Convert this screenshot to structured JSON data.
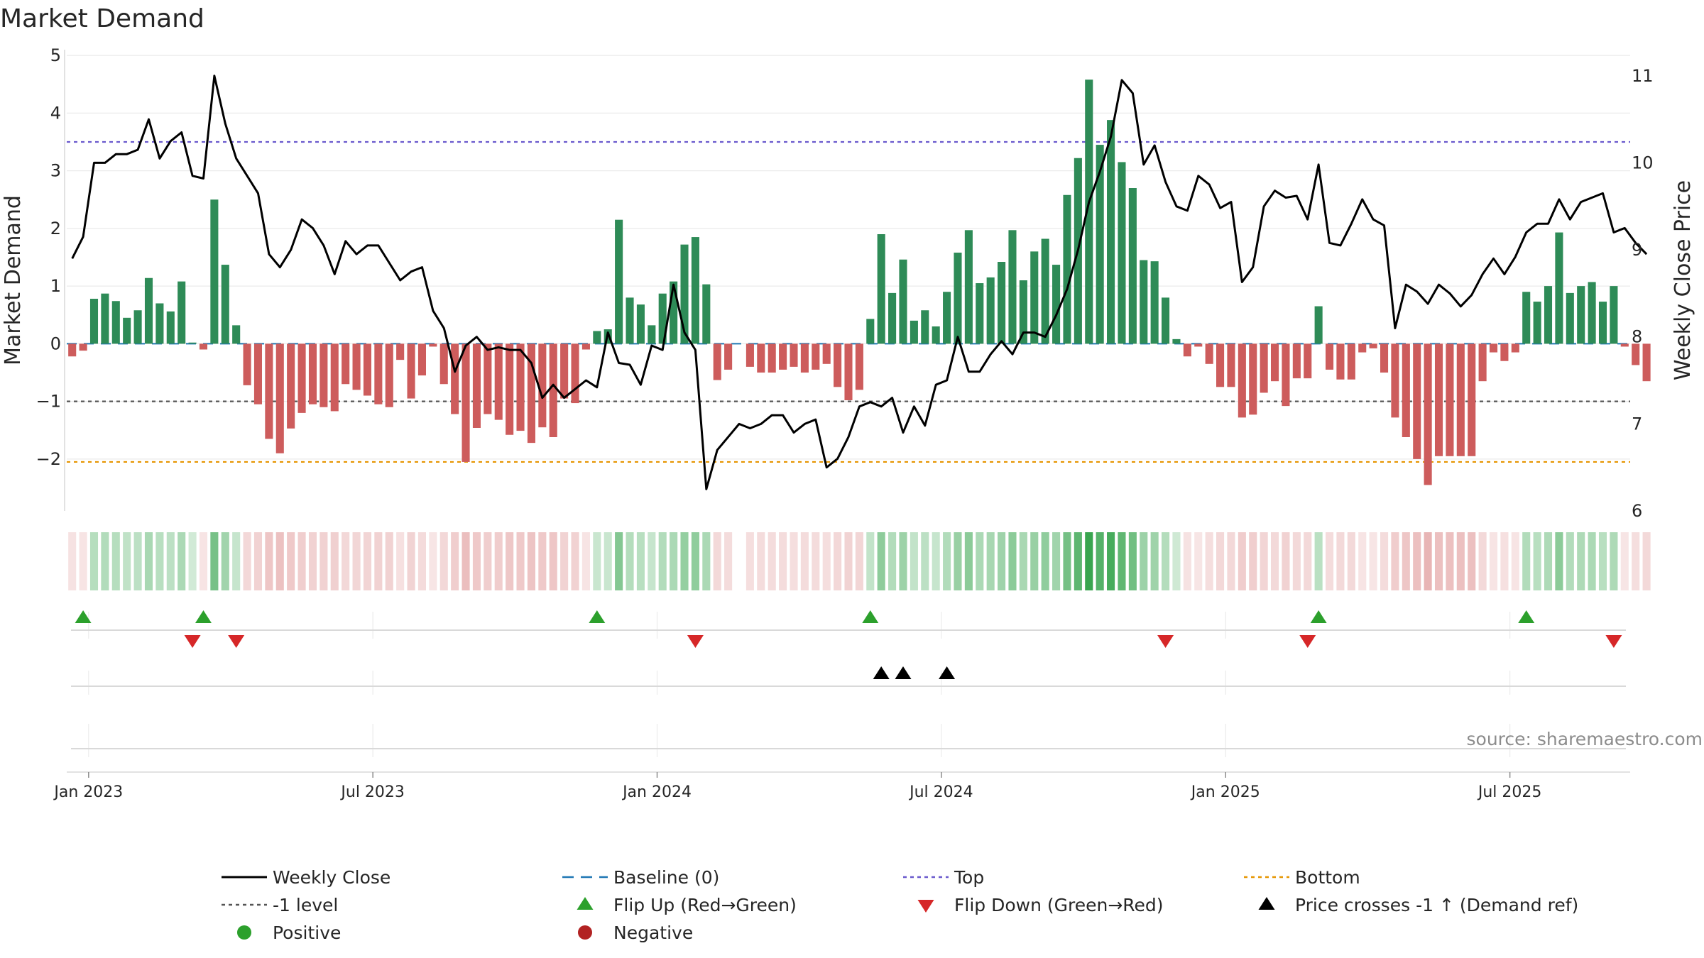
{
  "chart_data": {
    "type": "bar",
    "title": "Market Demand",
    "ylabel": "Market Demand",
    "y2label": "Weekly Close Price",
    "ylim": [
      -2.9,
      5.1
    ],
    "y2lim": [
      6.0,
      11.3
    ],
    "yticks": [
      5,
      4,
      3,
      2,
      1,
      0,
      -1,
      -2
    ],
    "yticklabels": [
      "5",
      "4",
      "3",
      "2",
      "1",
      "0",
      "−1",
      "−2"
    ],
    "y2ticks": [
      11,
      10,
      9,
      8,
      7,
      6
    ],
    "y2ticklabels": [
      "11",
      "10",
      "9",
      "8",
      "7",
      "6"
    ],
    "xticks": [
      1.5,
      27.5,
      53.5,
      79.5,
      105.5,
      131.5
    ],
    "xticklabels": [
      "Jan 2023",
      "Jul 2023",
      "Jan 2024",
      "Jul 2024",
      "Jan 2025",
      "Jul 2025"
    ],
    "week_index_range": [
      -0.5,
      142.5
    ],
    "reference_lines": {
      "baseline": 0,
      "top": 3.5,
      "minus_one": -1,
      "bottom": -2.05
    },
    "demand": [
      -0.22,
      -0.12,
      0.78,
      0.87,
      0.74,
      0.45,
      0.58,
      1.14,
      0.7,
      0.56,
      1.08,
      0.02,
      -0.1,
      2.5,
      1.37,
      0.32,
      -0.72,
      -1.05,
      -1.65,
      -1.9,
      -1.47,
      -1.2,
      -1.05,
      -1.1,
      -1.17,
      -0.7,
      -0.8,
      -0.9,
      -1.05,
      -1.1,
      -0.28,
      -0.95,
      -0.55,
      -0.05,
      -0.7,
      -1.22,
      -2.05,
      -1.46,
      -1.22,
      -1.32,
      -1.58,
      -1.51,
      -1.72,
      -1.45,
      -1.62,
      -0.95,
      -1.03,
      -0.1,
      0.22,
      0.25,
      2.15,
      0.8,
      0.68,
      0.32,
      0.87,
      1.08,
      1.72,
      1.85,
      1.03,
      -0.63,
      -0.45,
      0.0,
      -0.4,
      -0.5,
      -0.5,
      -0.45,
      -0.4,
      -0.5,
      -0.45,
      -0.35,
      -0.75,
      -0.98,
      -0.8,
      0.43,
      1.9,
      0.88,
      1.46,
      0.4,
      0.58,
      0.3,
      0.9,
      1.58,
      1.97,
      1.05,
      1.15,
      1.42,
      1.97,
      1.1,
      1.6,
      1.82,
      1.37,
      2.58,
      3.22,
      4.58,
      3.45,
      3.88,
      3.15,
      2.7,
      1.45,
      1.43,
      0.8,
      0.08,
      -0.22,
      -0.05,
      -0.35,
      -0.75,
      -0.75,
      -1.28,
      -1.23,
      -0.85,
      -0.65,
      -1.08,
      -0.6,
      -0.6,
      0.65,
      -0.45,
      -0.62,
      -0.62,
      -0.15,
      -0.08,
      -0.5,
      -1.28,
      -1.62,
      -2.0,
      -2.45,
      -1.95,
      -1.95,
      -1.95,
      -1.95,
      -0.65,
      -0.15,
      -0.3,
      -0.15,
      0.9,
      0.73,
      1.0,
      1.93,
      0.88,
      1.0,
      1.07,
      0.73,
      1.0,
      -0.05,
      -0.37,
      -0.65
    ],
    "close": [
      8.9,
      9.15,
      10.0,
      10.0,
      10.1,
      10.1,
      10.15,
      10.5,
      10.05,
      10.25,
      10.35,
      9.85,
      9.82,
      11.0,
      10.45,
      10.05,
      9.85,
      9.65,
      8.95,
      8.8,
      9.0,
      9.35,
      9.25,
      9.05,
      8.72,
      9.1,
      8.95,
      9.05,
      9.05,
      8.85,
      8.65,
      8.75,
      8.8,
      8.3,
      8.1,
      7.6,
      7.9,
      8.0,
      7.85,
      7.88,
      7.85,
      7.85,
      7.7,
      7.3,
      7.45,
      7.3,
      7.4,
      7.5,
      7.42,
      8.05,
      7.7,
      7.68,
      7.45,
      7.9,
      7.85,
      8.6,
      8.05,
      7.85,
      6.25,
      6.7,
      6.85,
      7.0,
      6.95,
      7.0,
      7.1,
      7.1,
      6.9,
      7.0,
      7.05,
      6.5,
      6.6,
      6.85,
      7.2,
      7.25,
      7.2,
      7.3,
      6.9,
      7.2,
      6.98,
      7.45,
      7.5,
      8.0,
      7.6,
      7.6,
      7.8,
      7.95,
      7.8,
      8.05,
      8.05,
      8.0,
      8.25,
      8.55,
      9.0,
      9.55,
      9.9,
      10.3,
      10.95,
      10.8,
      9.98,
      10.2,
      9.78,
      9.5,
      9.45,
      9.85,
      9.75,
      9.48,
      9.55,
      8.63,
      8.8,
      9.5,
      9.68,
      9.6,
      9.62,
      9.35,
      9.98,
      9.08,
      9.05,
      9.3,
      9.58,
      9.35,
      9.28,
      8.1,
      8.6,
      8.52,
      8.38,
      8.6,
      8.5,
      8.35,
      8.48,
      8.72,
      8.9,
      8.72,
      8.92,
      9.2,
      9.3,
      9.3,
      9.58,
      9.35,
      9.55,
      9.6,
      9.65,
      9.2,
      9.25,
      9.08,
      8.95
    ],
    "flip_up_weeks": [
      1,
      12,
      48,
      73,
      114,
      133
    ],
    "flip_down_weeks": [
      11,
      15,
      57,
      100,
      113,
      141
    ],
    "price_cross_weeks": [
      74,
      76,
      80
    ],
    "legend": [
      {
        "label": "Weekly Close",
        "kind": "solid",
        "color": "#000000"
      },
      {
        "label": "Baseline (0)",
        "kind": "dashed",
        "color": "#1f77b4"
      },
      {
        "label": "Top",
        "kind": "dotted",
        "color": "#6a5acd"
      },
      {
        "label": "Bottom",
        "kind": "dotted",
        "color": "#e69500"
      },
      {
        "label": "-1 level",
        "kind": "dotted",
        "color": "#555555"
      },
      {
        "label": "Flip Up (Red→Green)",
        "kind": "triangle-up",
        "color": "#2ca02c"
      },
      {
        "label": "Flip Down (Green→Red)",
        "kind": "triangle-down",
        "color": "#d62728"
      },
      {
        "label": "Price crosses -1 ↑ (Demand ref)",
        "kind": "triangle-up",
        "color": "#000000"
      },
      {
        "label": "Positive",
        "kind": "circle",
        "color": "#2ca02c"
      },
      {
        "label": "Negative",
        "kind": "circle",
        "color": "#b22222"
      }
    ],
    "colors": {
      "positive": "#2e8b57",
      "negative": "#cd5c5c"
    },
    "source": "source: sharemaestro.com"
  }
}
